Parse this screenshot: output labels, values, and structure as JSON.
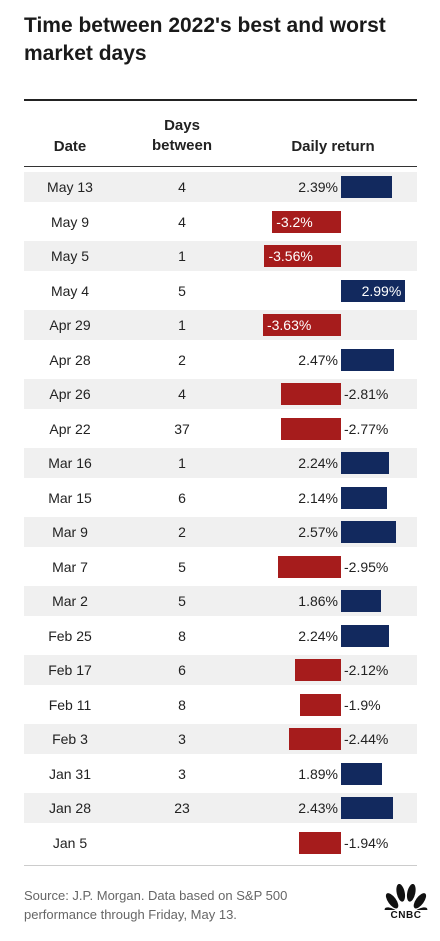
{
  "title": "Time between 2022's best and worst market days",
  "header": {
    "date": "Date",
    "days_line1": "Days",
    "days_line2": "between",
    "daily_return": "Daily return"
  },
  "chart_data": {
    "type": "table",
    "columns": [
      "Date",
      "Days between",
      "Daily return"
    ],
    "rows": [
      {
        "date": "May 13",
        "days": "4",
        "return": 2.39,
        "label": "2.39%"
      },
      {
        "date": "May 9",
        "days": "4",
        "return": -3.2,
        "label": "-3.2%"
      },
      {
        "date": "May 5",
        "days": "1",
        "return": -3.56,
        "label": "-3.56%"
      },
      {
        "date": "May 4",
        "days": "5",
        "return": 2.99,
        "label": "2.99%"
      },
      {
        "date": "Apr 29",
        "days": "1",
        "return": -3.63,
        "label": "-3.63%"
      },
      {
        "date": "Apr 28",
        "days": "2",
        "return": 2.47,
        "label": "2.47%"
      },
      {
        "date": "Apr 26",
        "days": "4",
        "return": -2.81,
        "label": "-2.81%"
      },
      {
        "date": "Apr 22",
        "days": "37",
        "return": -2.77,
        "label": "-2.77%"
      },
      {
        "date": "Mar 16",
        "days": "1",
        "return": 2.24,
        "label": "2.24%"
      },
      {
        "date": "Mar 15",
        "days": "6",
        "return": 2.14,
        "label": "2.14%"
      },
      {
        "date": "Mar 9",
        "days": "2",
        "return": 2.57,
        "label": "2.57%"
      },
      {
        "date": "Mar 7",
        "days": "5",
        "return": -2.95,
        "label": "-2.95%"
      },
      {
        "date": "Mar 2",
        "days": "5",
        "return": 1.86,
        "label": "1.86%"
      },
      {
        "date": "Feb 25",
        "days": "8",
        "return": 2.24,
        "label": "2.24%"
      },
      {
        "date": "Feb 17",
        "days": "6",
        "return": -2.12,
        "label": "-2.12%"
      },
      {
        "date": "Feb 11",
        "days": "8",
        "return": -1.9,
        "label": "-1.9%"
      },
      {
        "date": "Feb 3",
        "days": "3",
        "return": -2.44,
        "label": "-2.44%"
      },
      {
        "date": "Jan 31",
        "days": "3",
        "return": 1.89,
        "label": "1.89%"
      },
      {
        "date": "Jan 28",
        "days": "23",
        "return": 2.43,
        "label": "2.43%"
      },
      {
        "date": "Jan 5",
        "days": "",
        "return": -1.94,
        "label": "-1.94%"
      }
    ],
    "colors": {
      "positive": "#12295e",
      "negative": "#a61c1c"
    }
  },
  "source": "Source: J.P. Morgan. Data based on S&P 500 performance through Friday, May 13.",
  "logo": {
    "icon": "nbc-peacock-icon",
    "text": "CNBC"
  }
}
